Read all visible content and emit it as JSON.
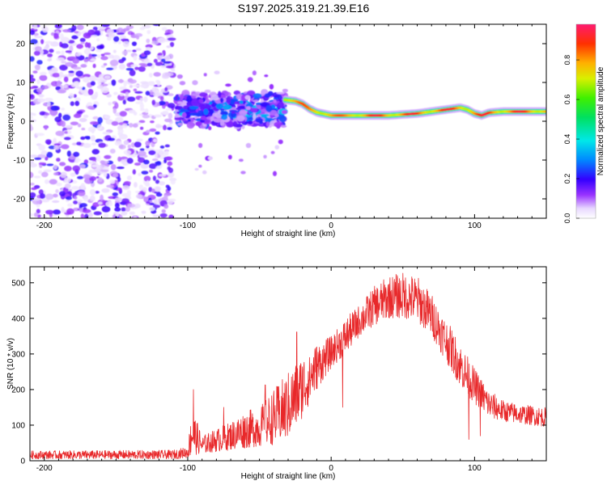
{
  "title": "S197.2025.319.21.39.E16",
  "colors": {
    "snr_line": "#e8282a",
    "axis": "#000000",
    "background": "#ffffff"
  },
  "chart_data": [
    {
      "type": "heatmap",
      "name": "spectrogram",
      "xlabel": "Height of straight line (km)",
      "ylabel": "Frequency (Hz)",
      "xlim": [
        -210,
        150
      ],
      "ylim": [
        -25,
        25
      ],
      "xticks": [
        -200,
        -100,
        0,
        100
      ],
      "yticks": [
        -20,
        -10,
        0,
        10,
        20
      ],
      "colorbar": {
        "label": "Normalized spectral amplitude",
        "ticks": [
          0.0,
          0.2,
          0.4,
          0.6,
          0.8
        ],
        "range": [
          0.0,
          0.98
        ]
      },
      "regions": [
        {
          "x_from": -210,
          "x_to": -110,
          "description": "noise",
          "amplitude_max": 0.2
        },
        {
          "x_from": -108,
          "x_to": -32,
          "center_freq": 3,
          "amplitude_max": 0.35
        },
        {
          "x_from": -32,
          "x_to": 150,
          "center_freq": 2,
          "amplitude_max": 0.95
        }
      ],
      "signal_track": {
        "x": [
          -32,
          -25,
          -20,
          -15,
          -10,
          0,
          10,
          20,
          40,
          60,
          80,
          90,
          95,
          100,
          105,
          110,
          120,
          150
        ],
        "freq": [
          5.5,
          5.2,
          4.5,
          3.2,
          2.3,
          1.5,
          1.5,
          1.5,
          1.5,
          2.0,
          3.0,
          3.5,
          3.0,
          2.0,
          1.5,
          2.2,
          2.5,
          2.5
        ]
      }
    },
    {
      "type": "line",
      "name": "snr",
      "xlabel": "Height of straight line (km)",
      "ylabel": "SNR (10 * v/v)",
      "xlim": [
        -210,
        150
      ],
      "ylim": [
        0,
        545
      ],
      "xticks": [
        -200,
        -100,
        0,
        100
      ],
      "yticks": [
        0,
        100,
        200,
        300,
        400,
        500
      ],
      "envelope": {
        "x": [
          -210,
          -110,
          -100,
          -97,
          -90,
          -80,
          -70,
          -60,
          -50,
          -40,
          -30,
          -20,
          -10,
          0,
          10,
          20,
          30,
          40,
          50,
          60,
          70,
          80,
          90,
          100,
          110,
          120,
          130,
          140,
          150
        ],
        "min": [
          5,
          5,
          8,
          15,
          20,
          25,
          30,
          35,
          40,
          45,
          60,
          120,
          200,
          260,
          300,
          350,
          380,
          400,
          400,
          390,
          350,
          280,
          210,
          160,
          120,
          110,
          105,
          100,
          95
        ],
        "max": [
          28,
          30,
          40,
          150,
          70,
          90,
          110,
          140,
          150,
          200,
          250,
          300,
          330,
          350,
          400,
          440,
          490,
          520,
          530,
          520,
          470,
          400,
          330,
          260,
          200,
          170,
          160,
          155,
          150
        ]
      },
      "spikes": [
        {
          "x": -96,
          "y": 200
        },
        {
          "x": -75,
          "y": 150
        },
        {
          "x": -46,
          "y": 213
        },
        {
          "x": -24,
          "y": 362
        },
        {
          "x": -15,
          "y": 290
        },
        {
          "x": 8,
          "y": 150
        },
        {
          "x": 96,
          "y": 60
        },
        {
          "x": 104,
          "y": 70
        }
      ]
    }
  ]
}
